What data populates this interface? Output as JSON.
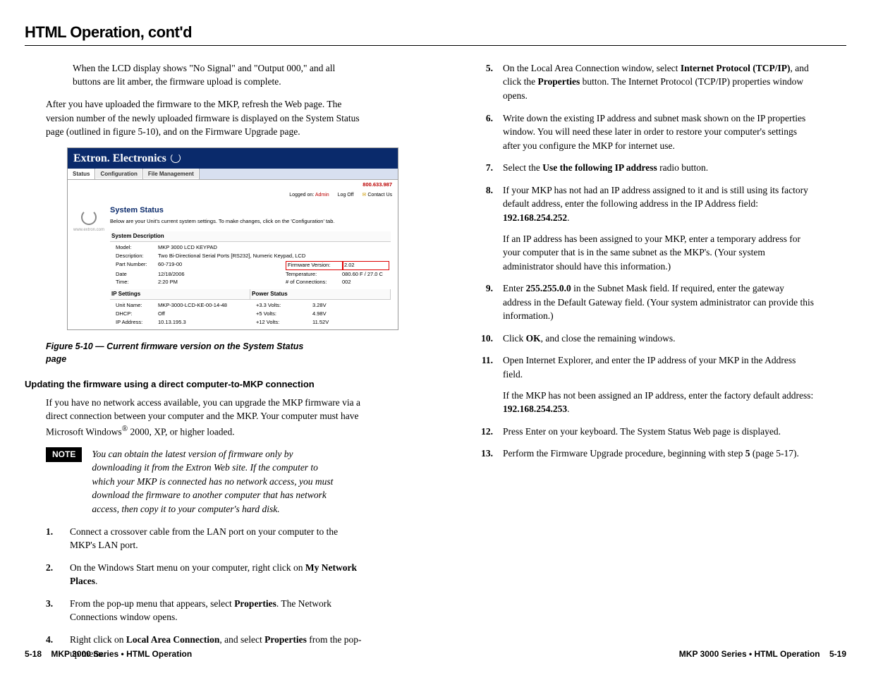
{
  "page_title": "HTML Operation, cont'd",
  "left": {
    "p1": "When the LCD display shows \"No Signal\" and \"Output 000,\" and all buttons are lit amber, the firmware upload is complete.",
    "p2": "After you have uploaded the firmware to the MKP, refresh the Web page.  The version number of the newly uploaded firmware is displayed on the System Status page (outlined in figure 5-10), and on the Firmware Upgrade page.",
    "screenshot": {
      "brand": "Extron. Electronics",
      "tabs": [
        "Status",
        "Configuration",
        "File Management"
      ],
      "info": {
        "logged_pre": "Logged on:",
        "admin": "Admin",
        "logoff": "Log Off",
        "contact": "Contact Us",
        "phone": "800.633.987"
      },
      "side_url": "www.extron.com",
      "heading": "System Status",
      "subtext": "Below are your Unit's current system settings. To make changes, click on the 'Configuration' tab.",
      "sec_desc_title": "System Description",
      "desc": {
        "model_l": "Model:",
        "model_v": "MKP 3000 LCD KEYPAD",
        "desc_l": "Description:",
        "desc_v": "Two Bi-Directional Serial Ports [RS232], Numeric Keypad, LCD",
        "part_l": "Part Number:",
        "part_v": "60-719-00",
        "fw_l": "Firmware Version:",
        "fw_v": "2.02",
        "date_l": "Date",
        "date_v": "12/18/2006",
        "temp_l": "Temperature:",
        "temp_v": "080.60 F / 27.0 C",
        "time_l": "Time:",
        "time_v": "2:20 PM",
        "conn_l": "# of Connections:",
        "conn_v": "002"
      },
      "sec_ip_title": "IP Settings",
      "ip": {
        "unit_l": "Unit Name:",
        "unit_v": "MKP-3000-LCD-KE-00-14-48",
        "dhcp_l": "DHCP:",
        "dhcp_v": "Off",
        "ip_l": "IP Address:",
        "ip_v": "10.13.195.3"
      },
      "sec_pw_title": "Power Status",
      "pw": {
        "r1l": "+3.3 Volts:",
        "r1v": "3.28V",
        "r2l": "+5 Volts:",
        "r2v": "4.98V",
        "r3l": "+12 Volts:",
        "r3v": "11.52V"
      }
    },
    "caption": "Figure 5-10 — Current firmware version on the System Status page",
    "subhead": "Updating the firmware using a direct computer-to-MKP connection",
    "p3a": "If you have no network access available, you can upgrade the MKP firmware via a direct connection between your computer and the MKP.  Your computer must have",
    "p3b": "Microsoft Windows",
    "p3c": " 2000, XP, or higher loaded.",
    "note": "You can obtain the latest version of firmware only by downloading it from the Extron Web site.  If the computer to which your MKP is connected has no network access, you must download the firmware to another computer that has network access, then copy it to your computer's hard disk.",
    "note_label": "NOTE",
    "steps": [
      {
        "n": "1",
        "t": "Connect a crossover cable from the LAN port on your computer to the MKP's LAN port."
      },
      {
        "n": "2",
        "t_pre": "On the Windows Start menu on your computer, right click on ",
        "b": "My Network Places",
        "t_post": "."
      },
      {
        "n": "3",
        "t_pre": "From the pop-up menu that appears, select ",
        "b": "Properties",
        "t_post": ".  The Network Connections window opens."
      },
      {
        "n": "4",
        "t_pre": "Right click on ",
        "b": "Local Area Connection",
        "t_mid": ", and select ",
        "b2": "Properties",
        "t_post": " from the pop-up menu."
      }
    ]
  },
  "right": {
    "steps": [
      {
        "n": "5",
        "seg": [
          "On the Local Area Connection window, select ",
          {
            "b": "Internet Protocol (TCP/IP)"
          },
          ", and click the ",
          {
            "b": "Properties"
          },
          " button.  The Internet Protocol (TCP/IP) properties window opens."
        ]
      },
      {
        "n": "6",
        "seg": [
          "Write down the existing IP address and subnet mask shown on the IP properties window.  You will need these later in order to restore your computer's settings after you configure the MKP for internet use."
        ]
      },
      {
        "n": "7",
        "seg": [
          "Select the ",
          {
            "b": "Use the following IP address"
          },
          " radio button."
        ]
      },
      {
        "n": "8",
        "seg": [
          "If your MKP has not had an IP address assigned to it and is still using its factory default address, enter the following address in the IP Address field:  ",
          {
            "b": "192.168.254.252"
          },
          "."
        ],
        "sub": [
          "If an IP address has been assigned to your MKP, enter a temporary address for your computer that is in the same subnet as the MKP's.   (Your system administrator should have this information.)"
        ]
      },
      {
        "n": "9",
        "seg": [
          "Enter ",
          {
            "b": "255.255.0.0"
          },
          " in the Subnet Mask field.  If required, enter the gateway address in the Default Gateway field.  (Your system administrator can provide this information.)"
        ]
      },
      {
        "n": "10",
        "seg": [
          "Click ",
          {
            "b": "OK"
          },
          ", and close the remaining windows."
        ]
      },
      {
        "n": "11",
        "seg": [
          "Open Internet Explorer, and enter the IP address of your MKP in the Address field."
        ],
        "sub": [
          "If the MKP has not been assigned an IP address, enter the factory default address: ",
          {
            "b": "192.168.254.253"
          },
          "."
        ]
      },
      {
        "n": "12",
        "seg": [
          "Press Enter on your keyboard.  The System Status Web page is displayed."
        ]
      },
      {
        "n": "13",
        "seg": [
          "Perform the Firmware Upgrade procedure, beginning with step ",
          {
            "b": "5"
          },
          " (page 5-17)."
        ]
      }
    ]
  },
  "footer": {
    "left_page": "5-18",
    "left_sec": "MKP 3000 Series • HTML Operation",
    "right_sec": "MKP 3000 Series • HTML Operation",
    "right_page": "5-19"
  }
}
